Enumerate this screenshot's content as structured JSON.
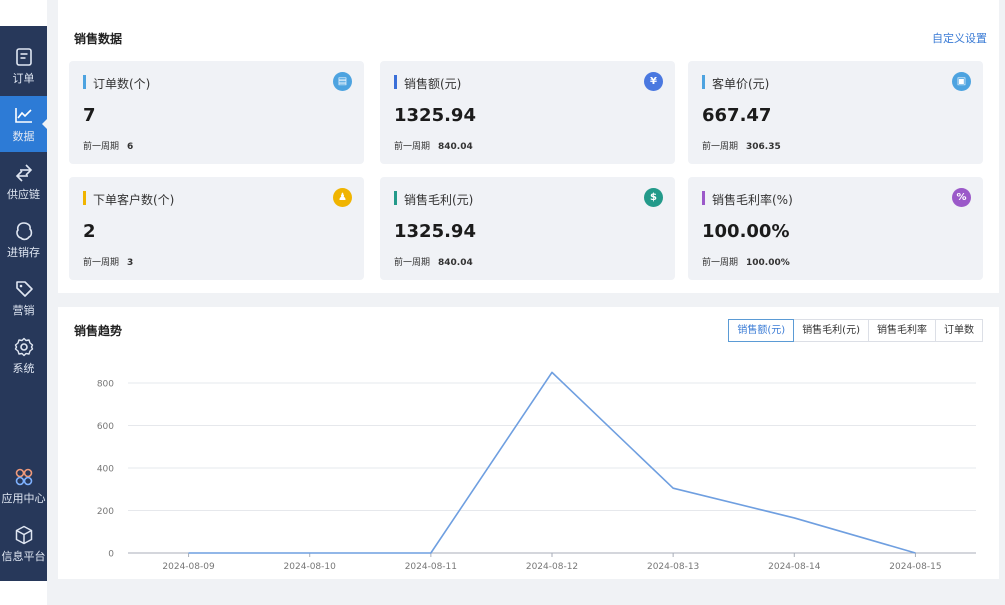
{
  "sidebar": {
    "items": [
      {
        "label": "订单",
        "icon": "order-icon",
        "active": false
      },
      {
        "label": "数据",
        "icon": "chart-line-icon",
        "active": true
      },
      {
        "label": "供应链",
        "icon": "exchange-icon",
        "active": false
      },
      {
        "label": "进销存",
        "icon": "inventory-icon",
        "active": false
      },
      {
        "label": "营销",
        "icon": "tag-icon",
        "active": false
      },
      {
        "label": "系统",
        "icon": "gear-icon",
        "active": false
      }
    ],
    "bottom_items": [
      {
        "label": "应用中心",
        "icon": "app-center-icon"
      },
      {
        "label": "信息平台",
        "icon": "cube-icon"
      }
    ]
  },
  "sales_data": {
    "title": "销售数据",
    "custom_link": "自定义设置",
    "cards": [
      {
        "label": "订单数(个)",
        "value": "7",
        "prev_label": "前一周期",
        "prev_value": "6",
        "accent": "#4da3e0",
        "icon_color": "#4da3e0",
        "icon": "document-icon",
        "glyph": "▤"
      },
      {
        "label": "销售额(元)",
        "value": "1325.94",
        "prev_label": "前一周期",
        "prev_value": "840.04",
        "accent": "#3a6fd8",
        "icon_color": "#4a78e0",
        "icon": "yen-icon",
        "glyph": "¥"
      },
      {
        "label": "客单价(元)",
        "value": "667.47",
        "prev_label": "前一周期",
        "prev_value": "306.35",
        "accent": "#4da3e0",
        "icon_color": "#4da3e0",
        "icon": "receipt-icon",
        "glyph": "▣"
      },
      {
        "label": "下单客户数(个)",
        "value": "2",
        "prev_label": "前一周期",
        "prev_value": "3",
        "accent": "#f0b400",
        "icon_color": "#f0b400",
        "icon": "user-icon",
        "glyph": "♟"
      },
      {
        "label": "销售毛利(元)",
        "value": "1325.94",
        "prev_label": "前一周期",
        "prev_value": "840.04",
        "accent": "#239a8a",
        "icon_color": "#239a8a",
        "icon": "money-bag-icon",
        "glyph": "$"
      },
      {
        "label": "销售毛利率(%)",
        "value": "100.00%",
        "prev_label": "前一周期",
        "prev_value": "100.00%",
        "accent": "#9b59c9",
        "icon_color": "#9b59c9",
        "icon": "percent-icon",
        "glyph": "%"
      }
    ]
  },
  "trend": {
    "title": "销售趋势",
    "tabs": [
      "销售额(元)",
      "销售毛利(元)",
      "销售毛利率",
      "订单数"
    ],
    "active_tab": 0
  },
  "chart_data": {
    "type": "line",
    "title": "",
    "xlabel": "",
    "ylabel": "",
    "x": [
      "2024-08-09",
      "2024-08-10",
      "2024-08-11",
      "2024-08-12",
      "2024-08-13",
      "2024-08-14",
      "2024-08-15"
    ],
    "series": [
      {
        "values": [
          0,
          0,
          0,
          850,
          305,
          165,
          0
        ]
      }
    ],
    "ylim": [
      0,
      800
    ],
    "yticks": [
      0,
      200,
      400,
      600,
      800
    ],
    "grid": true,
    "line_color": "#6f9fe0"
  }
}
